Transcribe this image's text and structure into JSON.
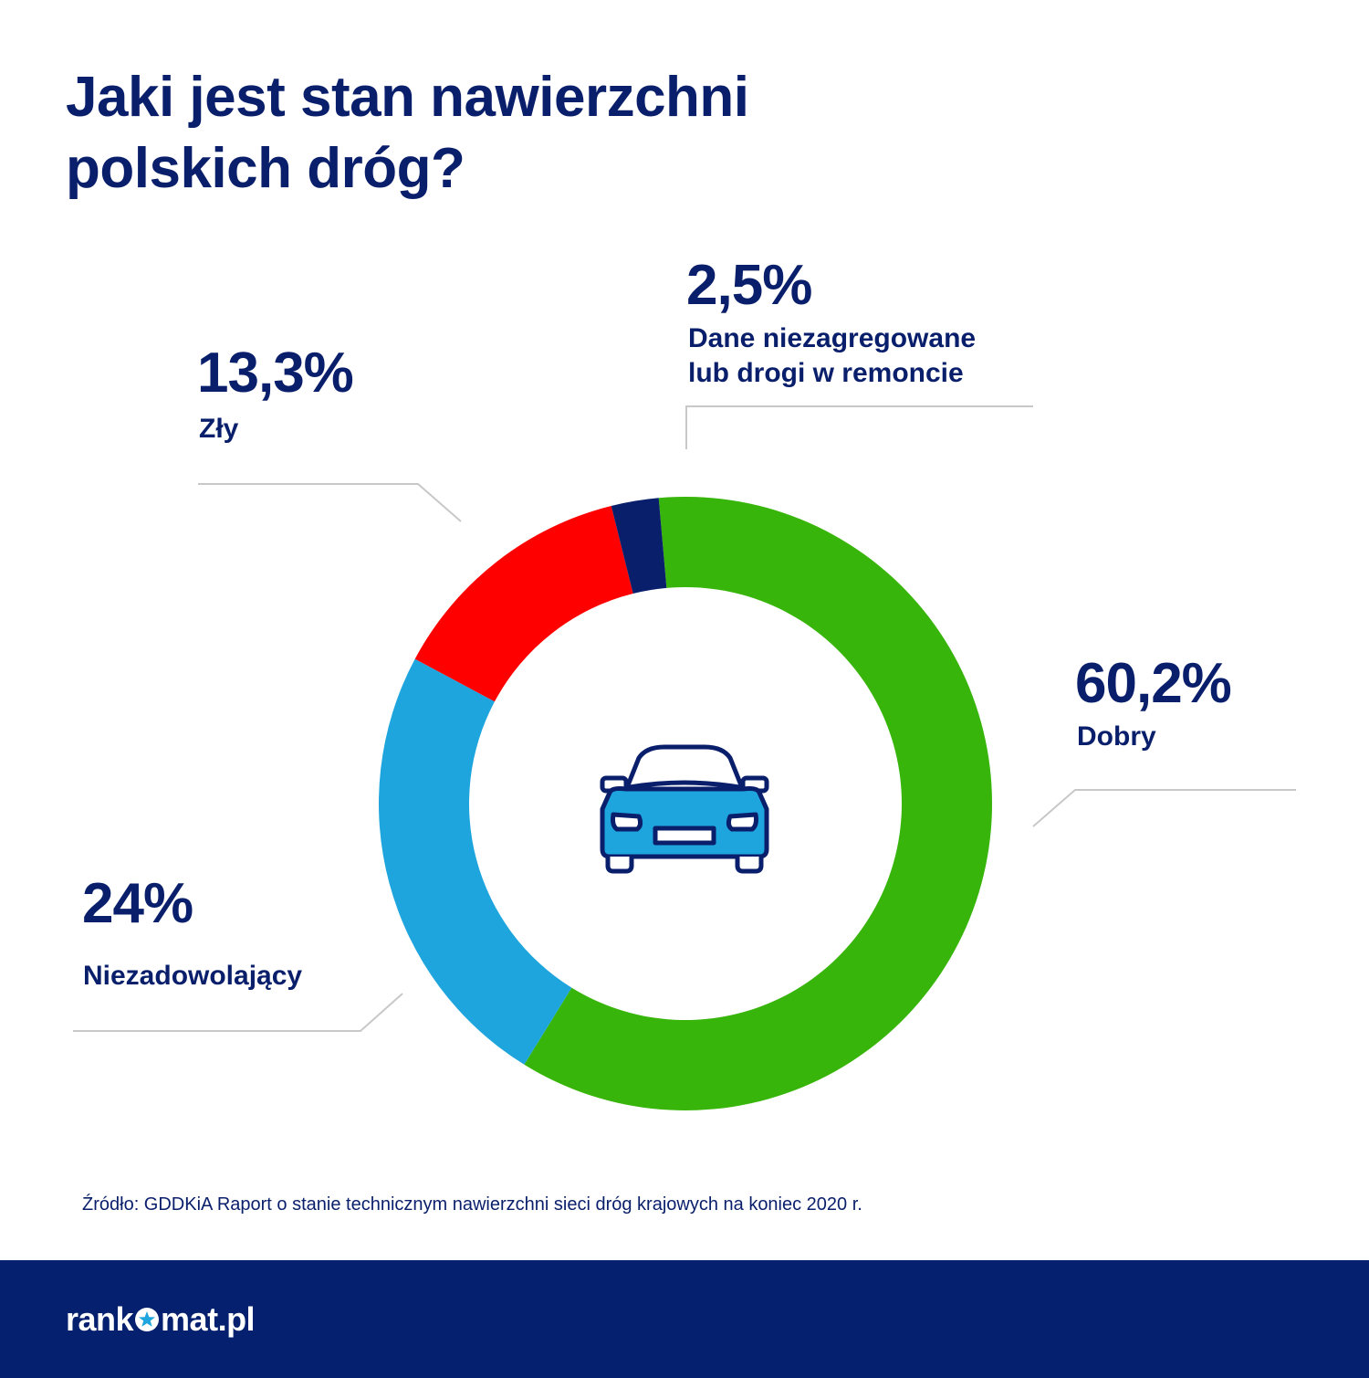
{
  "title": "Jaki jest stan nawierzchni polskich dróg?",
  "chart_data": {
    "type": "pie",
    "variant": "donut",
    "slices": [
      {
        "label": "Dobry",
        "value": 60.2,
        "display": "60,2%",
        "color": "#38b50a"
      },
      {
        "label": "Niezadowolający",
        "value": 24,
        "display": "24%",
        "color": "#1ea5de"
      },
      {
        "label": "Zły",
        "value": 13.3,
        "display": "13,3%",
        "color": "#ff0000"
      },
      {
        "label": "Dane niezagregowane lub drogi w remoncie",
        "value": 2.5,
        "display": "2,5%",
        "color": "#0a1f6b"
      }
    ],
    "start_angle_deg": -5,
    "direction": "clockwise"
  },
  "labels": {
    "dobry_pct": "60,2%",
    "dobry": "Dobry",
    "niezadowolajacy_pct": "24%",
    "niezadowolajacy": "Niezadowolający",
    "zly_pct": "13,3%",
    "zly": "Zły",
    "dane_pct": "2,5%",
    "dane_line1": "Dane niezagregowane",
    "dane_line2": "lub drogi w remoncie"
  },
  "center_icon": "car-icon",
  "source": "Źródło: GDDKiA Raport o stanie technicznym nawierzchni sieci dróg krajowych na koniec 2020 r.",
  "footer": {
    "logo_left": "rank",
    "logo_right": "mat.pl",
    "logo_icon": "star-icon",
    "background": "#04206e"
  },
  "colors": {
    "text": "#0a1f6b",
    "leader_lines": "#c8c8c8"
  }
}
